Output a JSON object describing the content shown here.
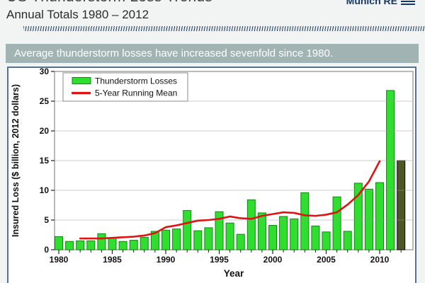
{
  "header": {
    "title_line1": "US Thunderstorm Loss Trends",
    "title_line2": "Annual Totals 1980 – 2012",
    "logo_text": "Munich RE"
  },
  "banner": {
    "text": "Average thunderstorm losses have increased sevenfold since 1980."
  },
  "chart_data": {
    "type": "bar",
    "title": "US Thunderstorm Loss Trends, Annual Totals 1980 - 2012",
    "xlabel": "Year",
    "ylabel": "Insured Loss ($ billion, 2012 dollars)",
    "ylim": [
      0,
      30
    ],
    "yticks": [
      0,
      5,
      10,
      15,
      20,
      25,
      30
    ],
    "xticks": [
      1980,
      1985,
      1990,
      1995,
      2000,
      2005,
      2010
    ],
    "grid": "horizontal, drawn over bars",
    "legend_position": "top-left inside plot",
    "years": [
      1980,
      1981,
      1982,
      1983,
      1984,
      1985,
      1986,
      1987,
      1988,
      1989,
      1990,
      1991,
      1992,
      1993,
      1994,
      1995,
      1996,
      1997,
      1998,
      1999,
      2000,
      2001,
      2002,
      2003,
      2004,
      2005,
      2006,
      2007,
      2008,
      2009,
      2010,
      2011,
      2012
    ],
    "series": [
      {
        "name": "Thunderstorm Losses",
        "type": "bar",
        "values": [
          2.2,
          1.4,
          1.5,
          1.5,
          2.7,
          2.0,
          1.4,
          1.6,
          2.1,
          3.1,
          3.3,
          3.5,
          6.6,
          3.2,
          3.7,
          6.4,
          4.5,
          2.6,
          8.4,
          6.2,
          4.1,
          5.6,
          5.2,
          9.6,
          4.0,
          3.0,
          8.9,
          3.1,
          11.2,
          10.2,
          11.3,
          26.8,
          15.0
        ]
      },
      {
        "name": "5-Year Running Mean",
        "type": "line",
        "x": [
          1982,
          1983,
          1984,
          1985,
          1986,
          1987,
          1988,
          1989,
          1990,
          1991,
          1992,
          1993,
          1994,
          1995,
          1996,
          1997,
          1998,
          1999,
          2000,
          2001,
          2002,
          2003,
          2004,
          2005,
          2006,
          2007,
          2008,
          2009,
          2010
        ],
        "values": [
          1.9,
          1.9,
          1.9,
          2.0,
          2.1,
          2.2,
          2.4,
          2.8,
          3.8,
          4.1,
          4.5,
          4.9,
          5.0,
          5.2,
          5.6,
          5.3,
          5.2,
          5.7,
          6.0,
          6.3,
          6.2,
          5.8,
          5.7,
          5.9,
          6.3,
          7.6,
          9.2,
          11.5,
          14.9
        ]
      }
    ],
    "highlight_last_bar": "2012 bar drawn in dark olive instead of green",
    "colors": {
      "bar_fill": "#2fde2f",
      "bar_stroke": "#128512",
      "bar_2012_fill": "#4d5626",
      "bar_2012_stroke": "#0c0c0c",
      "line_red": "#e01212",
      "grid": "#9a9a9a",
      "frame": "#8c8c8c",
      "banner_bg": "#a2b3b3",
      "card_border": "#54718d",
      "logo_navy": "#14366b"
    }
  }
}
